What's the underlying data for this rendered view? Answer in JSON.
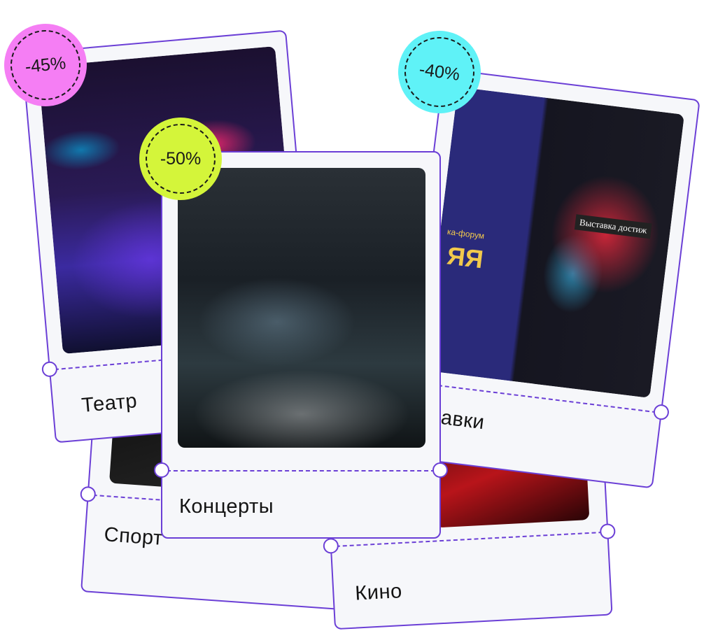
{
  "cards": [
    {
      "id": "sport",
      "label": "Спорт"
    },
    {
      "id": "cinema",
      "label": "Кино"
    },
    {
      "id": "exhibitions",
      "label": "вавки",
      "discount": "-40%",
      "badge_color": "#5ff2f7",
      "photo_text": {
        "banner": "Выставка достиж",
        "sign": "ка-форум",
        "big": "ЯЯ"
      }
    },
    {
      "id": "theatre",
      "label": "Театр",
      "discount": "-45%",
      "badge_color": "#f57ef4"
    },
    {
      "id": "concerts",
      "label": "Концерты",
      "discount": "-50%",
      "badge_color": "#d4f53a"
    }
  ],
  "colors": {
    "accent": "#6b3fd6",
    "card_bg": "#f6f7fa",
    "text": "#141414"
  }
}
